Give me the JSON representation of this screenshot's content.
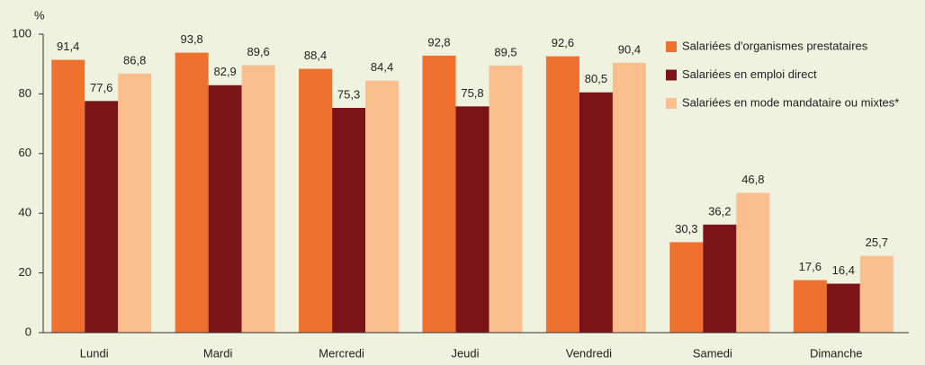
{
  "chart_data": {
    "type": "bar",
    "y_label": "%",
    "categories": [
      "Lundi",
      "Mardi",
      "Mercredi",
      "Jeudi",
      "Vendredi",
      "Samedi",
      "Dimanche"
    ],
    "series": [
      {
        "name": "Salariées d'organismes prestataires",
        "color": "#f07030",
        "values": [
          91.4,
          93.8,
          88.4,
          92.8,
          92.6,
          30.3,
          17.6
        ],
        "value_labels": [
          "91,4",
          "93,8",
          "88,4",
          "92,8",
          "92,6",
          "30,3",
          "17,6"
        ]
      },
      {
        "name": "Salariées en emploi direct",
        "color": "#7b1416",
        "values": [
          77.6,
          82.9,
          75.3,
          75.8,
          80.5,
          36.2,
          16.4
        ],
        "value_labels": [
          "77,6",
          "82,9",
          "75,3",
          "75,8",
          "80,5",
          "36,2",
          "16,4"
        ]
      },
      {
        "name": "Salariées en mode mandataire ou mixtes*",
        "color": "#fbbf8e",
        "values": [
          86.8,
          89.6,
          84.4,
          89.5,
          90.4,
          46.8,
          25.7
        ],
        "value_labels": [
          "86,8",
          "89,6",
          "84,4",
          "89,5",
          "90,4",
          "46,8",
          "25,7"
        ]
      }
    ],
    "ylim": [
      0,
      100
    ],
    "yticks": [
      0,
      20,
      40,
      60,
      80,
      100
    ],
    "legend": "top-right"
  }
}
